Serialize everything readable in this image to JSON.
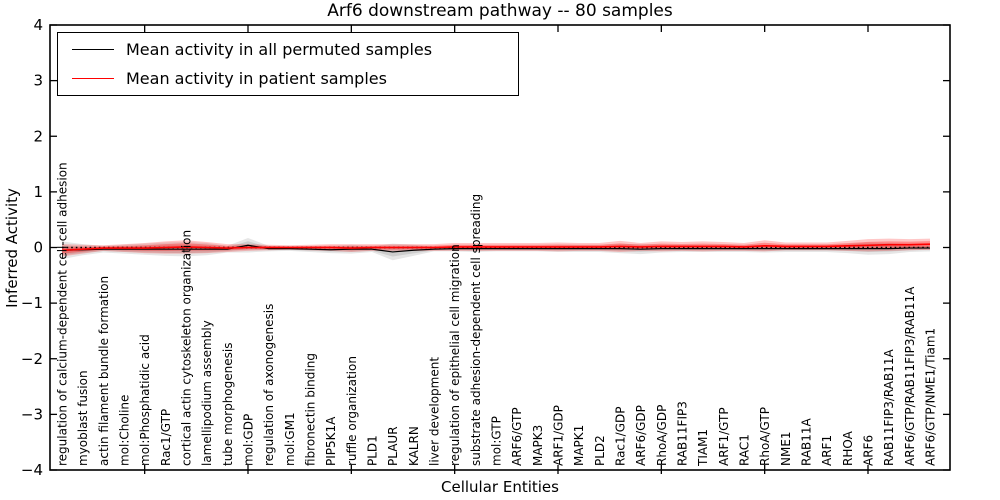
{
  "chart_data": {
    "type": "line",
    "title": "Arf6 downstream pathway -- 80 samples",
    "xlabel": "Cellular Entities",
    "ylabel": "Inferred Activity",
    "ylim": [
      -4,
      4
    ],
    "yticks": [
      -4,
      -3,
      -2,
      -1,
      0,
      1,
      2,
      3,
      4
    ],
    "x_major_tick_every": 5,
    "grid": false,
    "legend_position": "upper left",
    "legend": [
      {
        "label": "Mean activity in all permuted samples",
        "color": "#000000"
      },
      {
        "label": "Mean activity in patient samples",
        "color": "#ff0000"
      }
    ],
    "zero_line": {
      "y": 0,
      "style": "dotted",
      "color": "#000000"
    },
    "categories": [
      "regulation of calcium-dependent cell-cell adhesion",
      "myoblast fusion",
      "actin filament bundle formation",
      "mol:Choline",
      "mol:Phosphatidic acid",
      "Rac1/GTP",
      "cortical actin cytoskeleton organization",
      "lamellipodium assembly",
      "tube morphogenesis",
      "mol:GDP",
      "regulation of axonogenesis",
      "mol:GM1",
      "fibronectin binding",
      "PIP5K1A",
      "ruffle organization",
      "PLD1",
      "PLAUR",
      "KALRN",
      "liver development",
      "regulation of epithelial cell migration",
      "substrate adhesion-dependent cell spreading",
      "mol:GTP",
      "ARF6/GTP",
      "MAPK3",
      "ARF1/GDP",
      "MAPK1",
      "PLD2",
      "Rac1/GDP",
      "ARF6/GDP",
      "RhoA/GDP",
      "RAB11FIP3",
      "TIAM1",
      "ARF1/GTP",
      "RAC1",
      "RhoA/GTP",
      "NME1",
      "RAB11A",
      "ARF1",
      "RHOA",
      "ARF6",
      "RAB11FIP3/RAB11A",
      "ARF6/GTP/RAB11FIP3/RAB11A",
      "ARF6/GTP/NME1/Tiam1"
    ],
    "series": [
      {
        "name": "Mean activity in all permuted samples",
        "line_color": "#000000",
        "band_color": "#777777",
        "mean": [
          -0.05,
          -0.04,
          -0.03,
          -0.03,
          -0.03,
          -0.03,
          -0.03,
          -0.03,
          -0.03,
          0.04,
          -0.02,
          -0.02,
          -0.03,
          -0.04,
          -0.03,
          -0.03,
          -0.08,
          -0.05,
          -0.03,
          -0.02,
          -0.02,
          -0.02,
          -0.02,
          -0.02,
          -0.02,
          -0.02,
          -0.02,
          -0.02,
          -0.03,
          -0.02,
          -0.02,
          -0.02,
          -0.02,
          -0.02,
          -0.02,
          -0.02,
          -0.02,
          -0.02,
          -0.02,
          -0.02,
          -0.02,
          -0.01,
          -0.01
        ],
        "std": [
          0.16,
          0.1,
          0.06,
          0.08,
          0.1,
          0.12,
          0.13,
          0.11,
          0.06,
          0.13,
          0.05,
          0.04,
          0.05,
          0.06,
          0.08,
          0.05,
          0.15,
          0.1,
          0.04,
          0.05,
          0.06,
          0.05,
          0.05,
          0.05,
          0.06,
          0.06,
          0.06,
          0.08,
          0.09,
          0.07,
          0.06,
          0.06,
          0.06,
          0.06,
          0.07,
          0.06,
          0.06,
          0.06,
          0.08,
          0.11,
          0.1,
          0.07,
          0.06
        ]
      },
      {
        "name": "Mean activity in patient samples",
        "line_color": "#ff0000",
        "band_color": "#ff0000",
        "mean": [
          -0.05,
          -0.03,
          -0.01,
          -0.01,
          -0.01,
          0.0,
          0.01,
          0.0,
          -0.01,
          0.0,
          0.0,
          0.0,
          0.0,
          0.0,
          -0.01,
          0.0,
          0.0,
          0.0,
          0.0,
          0.01,
          0.01,
          0.01,
          0.01,
          0.01,
          0.01,
          0.01,
          0.01,
          0.02,
          0.01,
          0.02,
          0.02,
          0.02,
          0.02,
          0.01,
          0.03,
          0.02,
          0.02,
          0.02,
          0.03,
          0.04,
          0.05,
          0.05,
          0.06
        ],
        "std": [
          0.11,
          0.08,
          0.05,
          0.07,
          0.09,
          0.11,
          0.12,
          0.1,
          0.07,
          0.06,
          0.05,
          0.04,
          0.05,
          0.06,
          0.07,
          0.06,
          0.06,
          0.06,
          0.06,
          0.07,
          0.07,
          0.07,
          0.07,
          0.07,
          0.08,
          0.07,
          0.07,
          0.1,
          0.07,
          0.09,
          0.08,
          0.09,
          0.08,
          0.07,
          0.1,
          0.07,
          0.07,
          0.07,
          0.09,
          0.11,
          0.11,
          0.1,
          0.1
        ]
      }
    ]
  }
}
